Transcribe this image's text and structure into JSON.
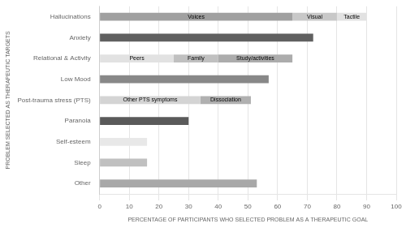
{
  "chart_data": {
    "type": "bar",
    "orientation": "horizontal",
    "stacked": true,
    "grid": true,
    "xlabel": "PERCENTAGE OF PARTICIPANTS WHO SELECTED PROBLEM AS A THERAPEUTIC GOAL",
    "ylabel": "PROBLEM SELECTED AS THERAPEUTIC TARGETS",
    "categories": [
      "Hallucinations",
      "Anxiety",
      "Relational & Activity",
      "Low Mood",
      "Post-trauma stress (PTS)",
      "Paranoia",
      "Self-esteem",
      "Sleep",
      "Other"
    ],
    "series": [
      {
        "values": [
          65,
          72,
          25,
          57,
          34,
          30,
          16,
          16,
          53
        ],
        "colors": [
          "#a0a0a0",
          "#606060",
          "#e2e2e2",
          "#888888",
          "#d4d4d4",
          "#5a5a5a",
          "#e8e8e8",
          "#c0c0c0",
          "#a8a8a8"
        ],
        "labels": [
          "Voices",
          null,
          "Peers",
          null,
          "Other PTS symptoms",
          null,
          null,
          null,
          null
        ]
      },
      {
        "values": [
          15,
          null,
          15,
          null,
          17,
          null,
          null,
          null,
          null
        ],
        "colors": [
          "#c8c8c8",
          null,
          "#c0c0c0",
          null,
          "#b0b0b0",
          null,
          null,
          null,
          null
        ],
        "labels": [
          "Visual",
          null,
          "Family",
          null,
          "Dissociation",
          null,
          null,
          null,
          null
        ]
      },
      {
        "values": [
          10,
          null,
          25,
          null,
          null,
          null,
          null,
          null,
          null
        ],
        "colors": [
          "#e2e2e2",
          null,
          "#acacac",
          null,
          null,
          null,
          null,
          null,
          null
        ],
        "labels": [
          "Tactile",
          null,
          "Study/activities",
          null,
          null,
          null,
          null,
          null,
          null
        ]
      }
    ],
    "xlim": [
      0,
      100
    ],
    "xticks": [
      0,
      10,
      20,
      30,
      40,
      50,
      60,
      70,
      80,
      90,
      100
    ]
  }
}
